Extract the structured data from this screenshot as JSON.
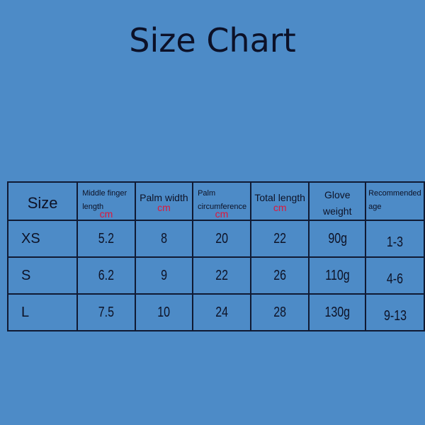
{
  "title": "Size Chart",
  "colors": {
    "background": "#4d8bc7",
    "unit": "#e0163a",
    "text": "#0d1226"
  },
  "chart_data": {
    "type": "table",
    "columns": [
      {
        "label": "Size",
        "unit": ""
      },
      {
        "label": "Middle finger length",
        "unit": "cm"
      },
      {
        "label": "Palm width",
        "unit": "cm"
      },
      {
        "label": "Palm circumference",
        "unit": "cm"
      },
      {
        "label": "Total length",
        "unit": "cm"
      },
      {
        "label": "Glove weight",
        "unit": ""
      },
      {
        "label": "Recommended age",
        "unit": ""
      }
    ],
    "rows": [
      [
        "XS",
        "5.2",
        "8",
        "20",
        "22",
        "90g",
        "1-3"
      ],
      [
        "S",
        "6.2",
        "9",
        "22",
        "26",
        "110g",
        "4-6"
      ],
      [
        "L",
        "7.5",
        "10",
        "24",
        "28",
        "130g",
        "9-13"
      ]
    ]
  }
}
